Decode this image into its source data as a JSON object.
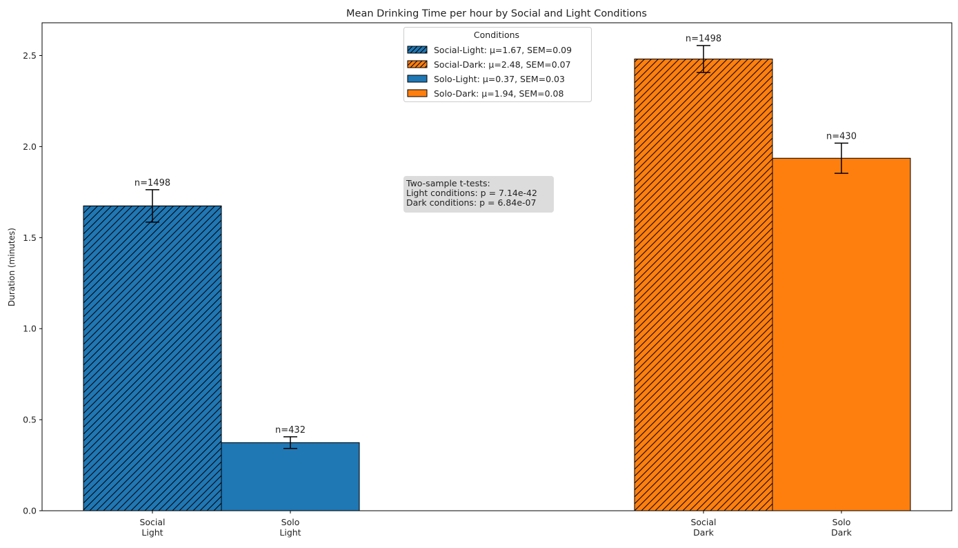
{
  "chart_data": {
    "type": "bar",
    "title": "Mean Drinking Time per hour by Social and Light Conditions",
    "xlabel": "",
    "ylabel": "Duration (minutes)",
    "ylim": [
      0,
      2.68
    ],
    "yticks": [
      "0.0",
      "0.5",
      "1.0",
      "1.5",
      "2.0",
      "2.5"
    ],
    "grid": false,
    "categories": [
      "Social\nLight",
      "Solo\nLight",
      "Social\nDark",
      "Solo\nDark"
    ],
    "bars": [
      {
        "category": "Social Light",
        "value": 1.674,
        "sem": 0.089,
        "n_label": "n=1498",
        "color": "#1f77b4",
        "hatch": true
      },
      {
        "category": "Solo Light",
        "value": 0.374,
        "sem": 0.032,
        "n_label": "n=432",
        "color": "#1f77b4",
        "hatch": false
      },
      {
        "category": "Social Dark",
        "value": 2.481,
        "sem": 0.074,
        "n_label": "n=1498",
        "color": "#ff7f0e",
        "hatch": true
      },
      {
        "category": "Solo Dark",
        "value": 1.936,
        "sem": 0.083,
        "n_label": "n=430",
        "color": "#ff7f0e",
        "hatch": false
      }
    ],
    "legend": {
      "title": "Conditions",
      "placement": "top-center",
      "entries": [
        {
          "label": "Social-Light: μ=1.67, SEM=0.09",
          "color": "#1f77b4",
          "hatch": true
        },
        {
          "label": "Social-Dark: μ=2.48, SEM=0.07",
          "color": "#ff7f0e",
          "hatch": true
        },
        {
          "label": "Solo-Light: μ=0.37, SEM=0.03",
          "color": "#1f77b4",
          "hatch": false
        },
        {
          "label": "Solo-Dark: μ=1.94, SEM=0.08",
          "color": "#ff7f0e",
          "hatch": false
        }
      ]
    },
    "annotation": [
      "Two-sample t-tests:",
      "Light conditions: p = 7.14e-42",
      "Dark conditions: p = 6.84e-07"
    ]
  }
}
